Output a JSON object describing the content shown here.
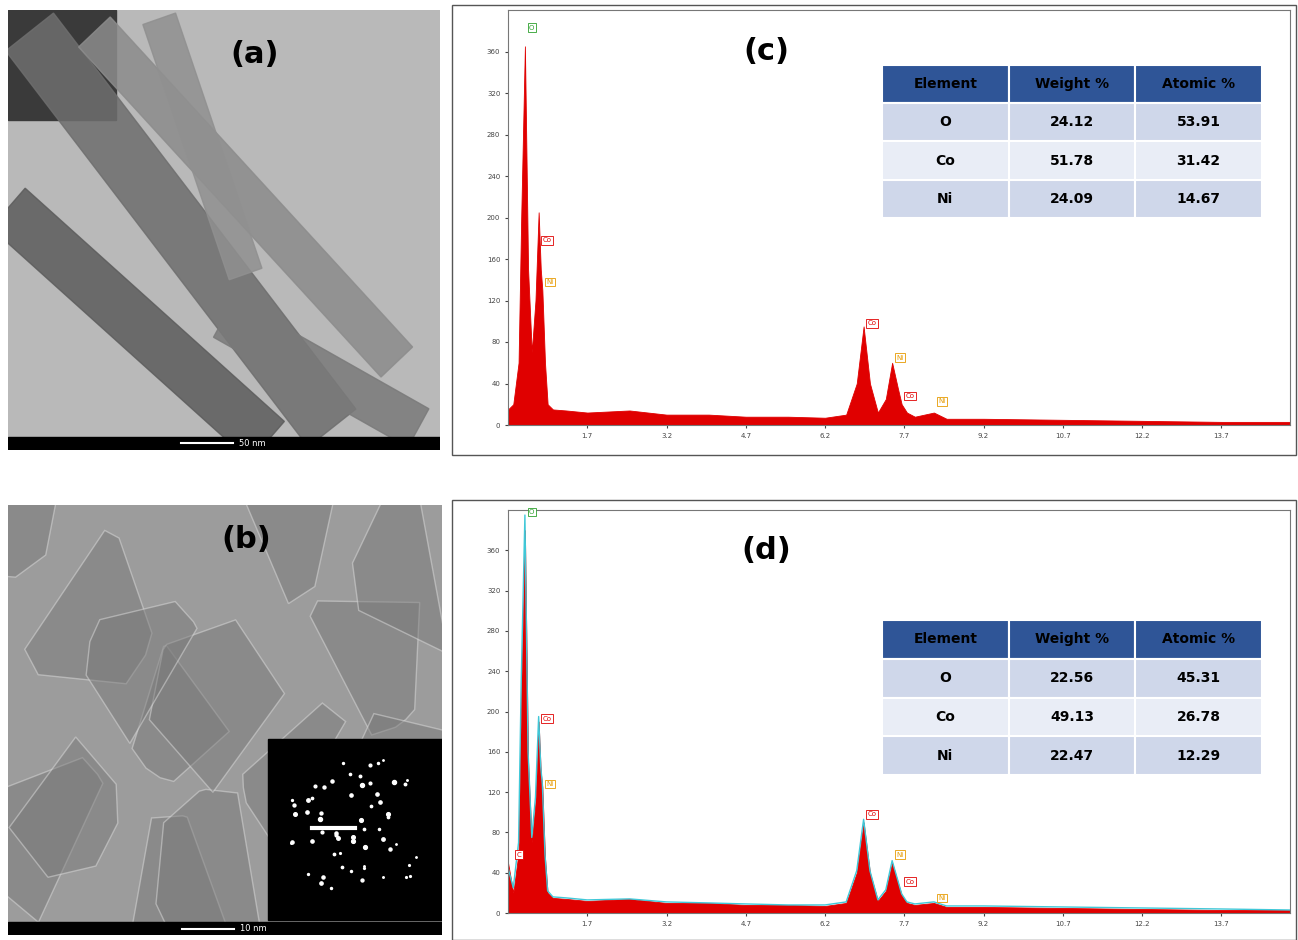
{
  "images": [
    {
      "label": "(a)",
      "scale_bar": "50 nm"
    },
    {
      "label": "(b)",
      "scale_bar": "10 nm"
    }
  ],
  "chart_data": [
    {
      "type": "line",
      "title": "(c)",
      "x": [
        0.2,
        0.3,
        0.4,
        0.45,
        0.52,
        0.58,
        0.65,
        0.72,
        0.78,
        0.82,
        0.85,
        0.9,
        0.95,
        1.05,
        1.3,
        1.7,
        2.5,
        3.2,
        4.0,
        4.7,
        5.5,
        6.2,
        6.6,
        6.8,
        6.93,
        7.05,
        7.2,
        7.35,
        7.47,
        7.58,
        7.65,
        7.75,
        7.9,
        8.26,
        8.5,
        9.2,
        10.7,
        12.2,
        13.7,
        15.0
      ],
      "series": [
        {
          "type": "area",
          "color": "#e00000",
          "values": [
            15,
            20,
            60,
            200,
            365,
            150,
            70,
            120,
            205,
            150,
            130,
            60,
            20,
            15,
            14,
            12,
            14,
            10,
            10,
            8,
            8,
            7,
            10,
            40,
            95,
            40,
            12,
            25,
            60,
            35,
            20,
            12,
            8,
            12,
            6,
            6,
            5,
            4,
            3,
            3
          ]
        }
      ],
      "xlim": [
        0.2,
        15.0
      ],
      "xticks": [
        1.7,
        3.2,
        4.7,
        6.2,
        7.7,
        9.2,
        10.7,
        12.2,
        13.7
      ],
      "ylim": [
        0,
        400
      ],
      "yticks": [
        0,
        40,
        80,
        120,
        160,
        200,
        240,
        280,
        320,
        360
      ],
      "annotations": [
        {
          "text": "O",
          "x": 0.52,
          "y": 380,
          "color": "#2ca02c"
        },
        {
          "text": "Co",
          "x": 0.78,
          "y": 175,
          "color": "#e00000"
        },
        {
          "text": "Ni",
          "x": 0.85,
          "y": 135,
          "color": "#e69a00"
        },
        {
          "text": "Co",
          "x": 6.93,
          "y": 95,
          "color": "#e00000"
        },
        {
          "text": "Ni",
          "x": 7.47,
          "y": 62,
          "color": "#e69a00"
        },
        {
          "text": "Co",
          "x": 7.65,
          "y": 25,
          "color": "#e00000"
        },
        {
          "text": "Ni",
          "x": 8.26,
          "y": 20,
          "color": "#e69a00"
        }
      ],
      "table": {
        "header": [
          "Element",
          "Weight %",
          "Atomic %"
        ],
        "rows": [
          [
            "O",
            "24.12",
            "53.91"
          ],
          [
            "Co",
            "51.78",
            "31.42"
          ],
          [
            "Ni",
            "24.09",
            "14.67"
          ]
        ]
      }
    },
    {
      "type": "line",
      "title": "(d)",
      "x": [
        0.2,
        0.3,
        0.4,
        0.45,
        0.52,
        0.58,
        0.65,
        0.72,
        0.78,
        0.82,
        0.85,
        0.9,
        0.95,
        1.05,
        1.3,
        1.7,
        2.5,
        3.2,
        4.0,
        4.7,
        5.5,
        6.2,
        6.6,
        6.8,
        6.93,
        7.05,
        7.2,
        7.35,
        7.47,
        7.58,
        7.65,
        7.75,
        7.9,
        8.26,
        8.5,
        9.2,
        10.7,
        12.2,
        13.7,
        15.0
      ],
      "series": [
        {
          "type": "area",
          "color": "#e00000",
          "values": [
            50,
            20,
            60,
            220,
            380,
            150,
            70,
            110,
            190,
            140,
            125,
            55,
            20,
            15,
            14,
            12,
            14,
            10,
            10,
            8,
            8,
            7,
            10,
            40,
            90,
            40,
            12,
            22,
            50,
            30,
            18,
            10,
            8,
            10,
            6,
            6,
            5,
            4,
            3,
            3
          ]
        },
        {
          "type": "line",
          "color": "#40c8d8",
          "values": [
            45,
            25,
            70,
            230,
            395,
            160,
            75,
            115,
            195,
            145,
            128,
            58,
            22,
            16,
            15,
            13,
            14,
            11,
            10,
            9,
            8,
            8,
            11,
            42,
            93,
            42,
            13,
            23,
            52,
            32,
            19,
            11,
            9,
            11,
            7,
            7,
            6,
            5,
            4,
            3
          ]
        }
      ],
      "xlim": [
        0.2,
        15.0
      ],
      "xticks": [
        1.7,
        3.2,
        4.7,
        6.2,
        7.7,
        9.2,
        10.7,
        12.2,
        13.7
      ],
      "ylim": [
        0,
        400
      ],
      "yticks": [
        0,
        40,
        80,
        120,
        160,
        200,
        240,
        280,
        320,
        360
      ],
      "annotations": [
        {
          "text": "O",
          "x": 0.52,
          "y": 395,
          "color": "#2ca02c"
        },
        {
          "text": "C",
          "x": 0.28,
          "y": 55,
          "color": "#e00000"
        },
        {
          "text": "Co",
          "x": 0.78,
          "y": 190,
          "color": "#e00000"
        },
        {
          "text": "Ni",
          "x": 0.85,
          "y": 125,
          "color": "#e69a00"
        },
        {
          "text": "Co",
          "x": 6.93,
          "y": 95,
          "color": "#e00000"
        },
        {
          "text": "Ni",
          "x": 7.47,
          "y": 55,
          "color": "#e69a00"
        },
        {
          "text": "Co",
          "x": 7.65,
          "y": 28,
          "color": "#e00000"
        },
        {
          "text": "Ni",
          "x": 8.26,
          "y": 12,
          "color": "#e69a00"
        }
      ],
      "table": {
        "header": [
          "Element",
          "Weight %",
          "Atomic %"
        ],
        "rows": [
          [
            "O",
            "22.56",
            "45.31"
          ],
          [
            "Co",
            "49.13",
            "26.78"
          ],
          [
            "Ni",
            "22.47",
            "12.29"
          ]
        ]
      }
    }
  ]
}
